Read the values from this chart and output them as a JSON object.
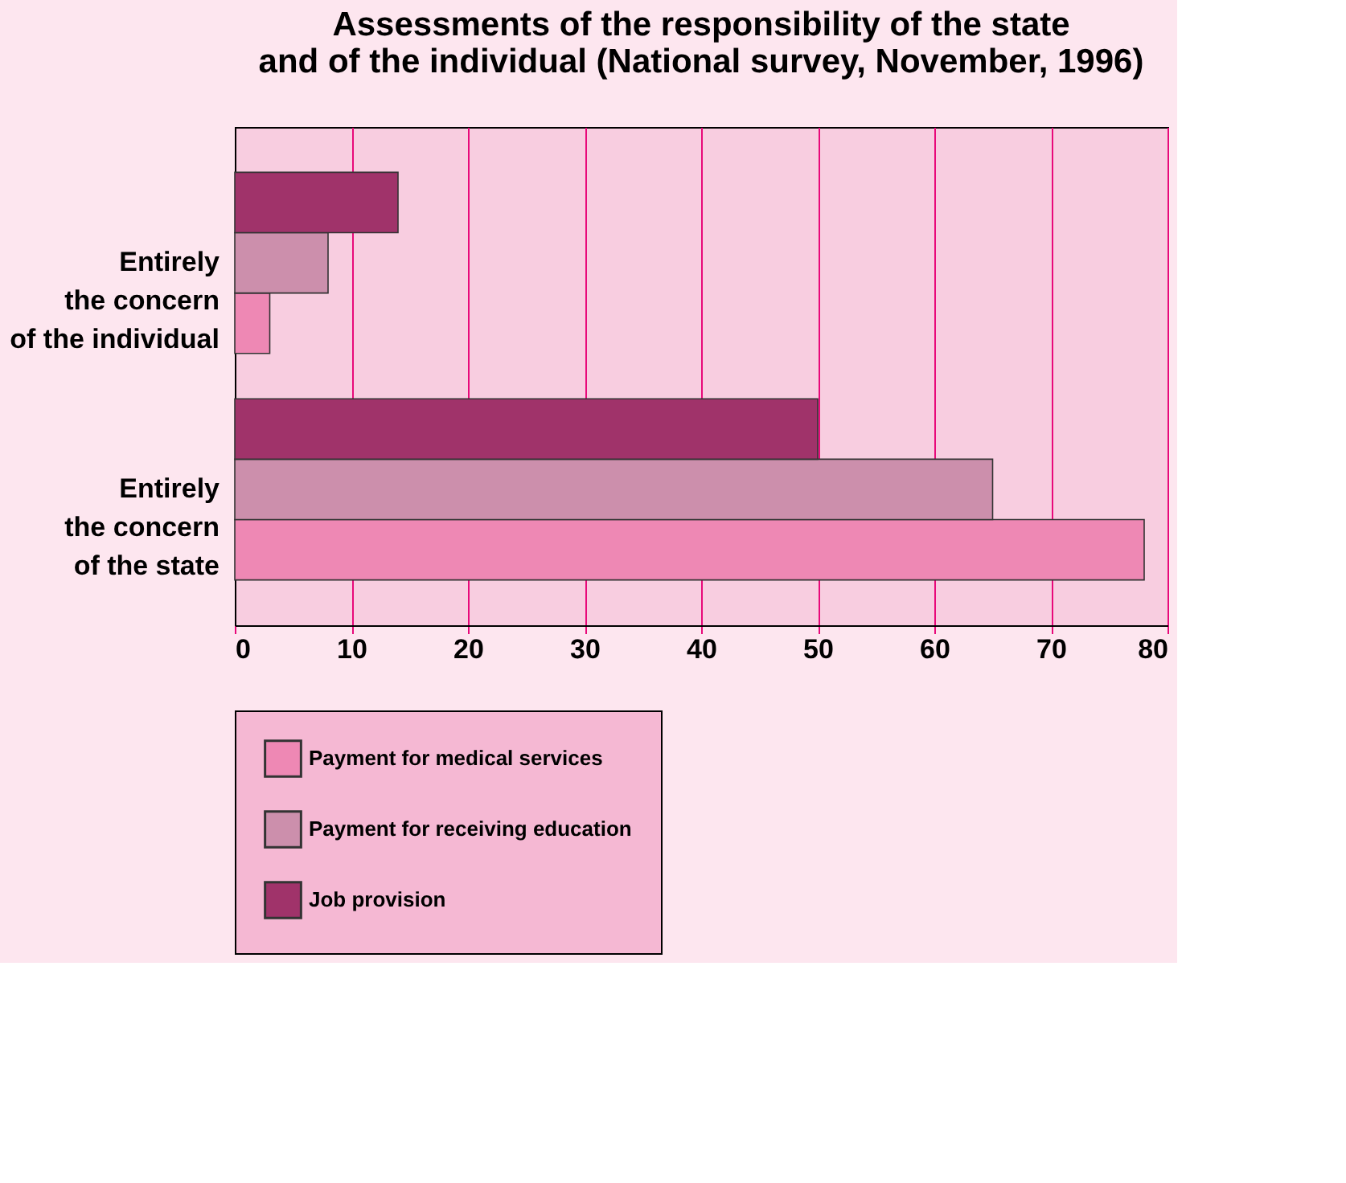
{
  "chart_data": {
    "type": "bar",
    "orientation": "horizontal",
    "title": "Assessments of the responsibility of the state\nand of the individual (National survey, November, 1996)",
    "categories": [
      "Entirely\nthe concern\nof the individual",
      "Entirely\nthe concern\nof the state"
    ],
    "series": [
      {
        "name": "Payment for medical services",
        "color": "#ee88b4",
        "values": [
          3,
          78
        ]
      },
      {
        "name": "Payment for receiving education",
        "color": "#cc8fac",
        "values": [
          8,
          65
        ]
      },
      {
        "name": "Job provision",
        "color": "#a0336a",
        "values": [
          14,
          50
        ]
      }
    ],
    "xlim": [
      0,
      80
    ],
    "xticks": [
      0,
      10,
      20,
      30,
      40,
      50,
      60,
      70,
      80
    ],
    "grid": "x",
    "legend": "bottom left"
  }
}
